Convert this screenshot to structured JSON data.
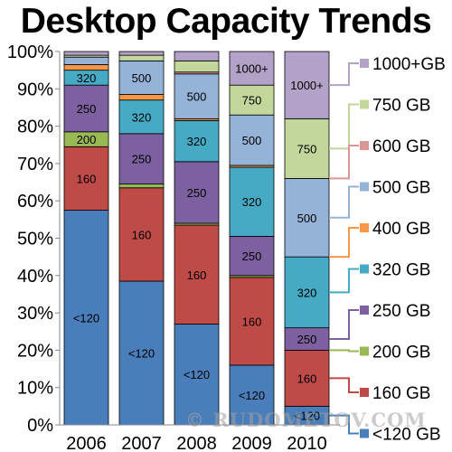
{
  "title": "Desktop Capacity Trends",
  "watermark": "© RUDOMETOV.COM",
  "chart_data": {
    "type": "bar",
    "stacked": true,
    "percent": true,
    "title": "Desktop Capacity Trends",
    "categories": [
      "2006",
      "2007",
      "2008",
      "2009",
      "2010"
    ],
    "ylim": [
      0,
      100
    ],
    "yticks": [
      "0%",
      "10%",
      "20%",
      "30%",
      "40%",
      "50%",
      "60%",
      "70%",
      "80%",
      "90%",
      "100%"
    ],
    "grid": false,
    "legend_position": "right",
    "series": [
      {
        "name": "<120 GB",
        "label": "<120",
        "color": "#4a7ebb",
        "values": [
          57.5,
          38.5,
          27.0,
          16.0,
          5.0
        ]
      },
      {
        "name": "160 GB",
        "label": "160",
        "color": "#be4b48",
        "values": [
          17.0,
          25.0,
          26.5,
          23.5,
          15.0
        ]
      },
      {
        "name": "200 GB",
        "label": "200",
        "color": "#98b954",
        "values": [
          4.0,
          1.0,
          0.5,
          0.5,
          0.0
        ]
      },
      {
        "name": "250 GB",
        "label": "250",
        "color": "#7d60a0",
        "values": [
          12.5,
          13.5,
          16.5,
          10.5,
          6.0
        ]
      },
      {
        "name": "320 GB",
        "label": "320",
        "color": "#46aac5",
        "values": [
          4.0,
          9.0,
          11.0,
          18.5,
          19.0
        ]
      },
      {
        "name": "400 GB",
        "label": "400",
        "color": "#f79646",
        "values": [
          1.5,
          1.5,
          0.5,
          0.5,
          0.0
        ]
      },
      {
        "name": "500 GB",
        "label": "500",
        "color": "#95b3d7",
        "values": [
          2.0,
          9.0,
          12.0,
          13.5,
          21.0
        ]
      },
      {
        "name": "600 GB",
        "label": "600",
        "color": "#d99694",
        "values": [
          0.0,
          0.0,
          0.5,
          0.0,
          0.0
        ]
      },
      {
        "name": "750 GB",
        "label": "750",
        "color": "#c3d69b",
        "values": [
          0.5,
          1.5,
          3.0,
          8.0,
          16.0
        ]
      },
      {
        "name": "1000+GB",
        "label": "1000+",
        "color": "#b3a2c7",
        "values": [
          1.0,
          1.0,
          2.5,
          9.0,
          18.0
        ]
      }
    ],
    "legend": [
      "1000+GB",
      "750 GB",
      "600 GB",
      "500 GB",
      "400 GB",
      "320 GB",
      "250 GB",
      "200 GB",
      "160 GB",
      "<120 GB"
    ]
  }
}
